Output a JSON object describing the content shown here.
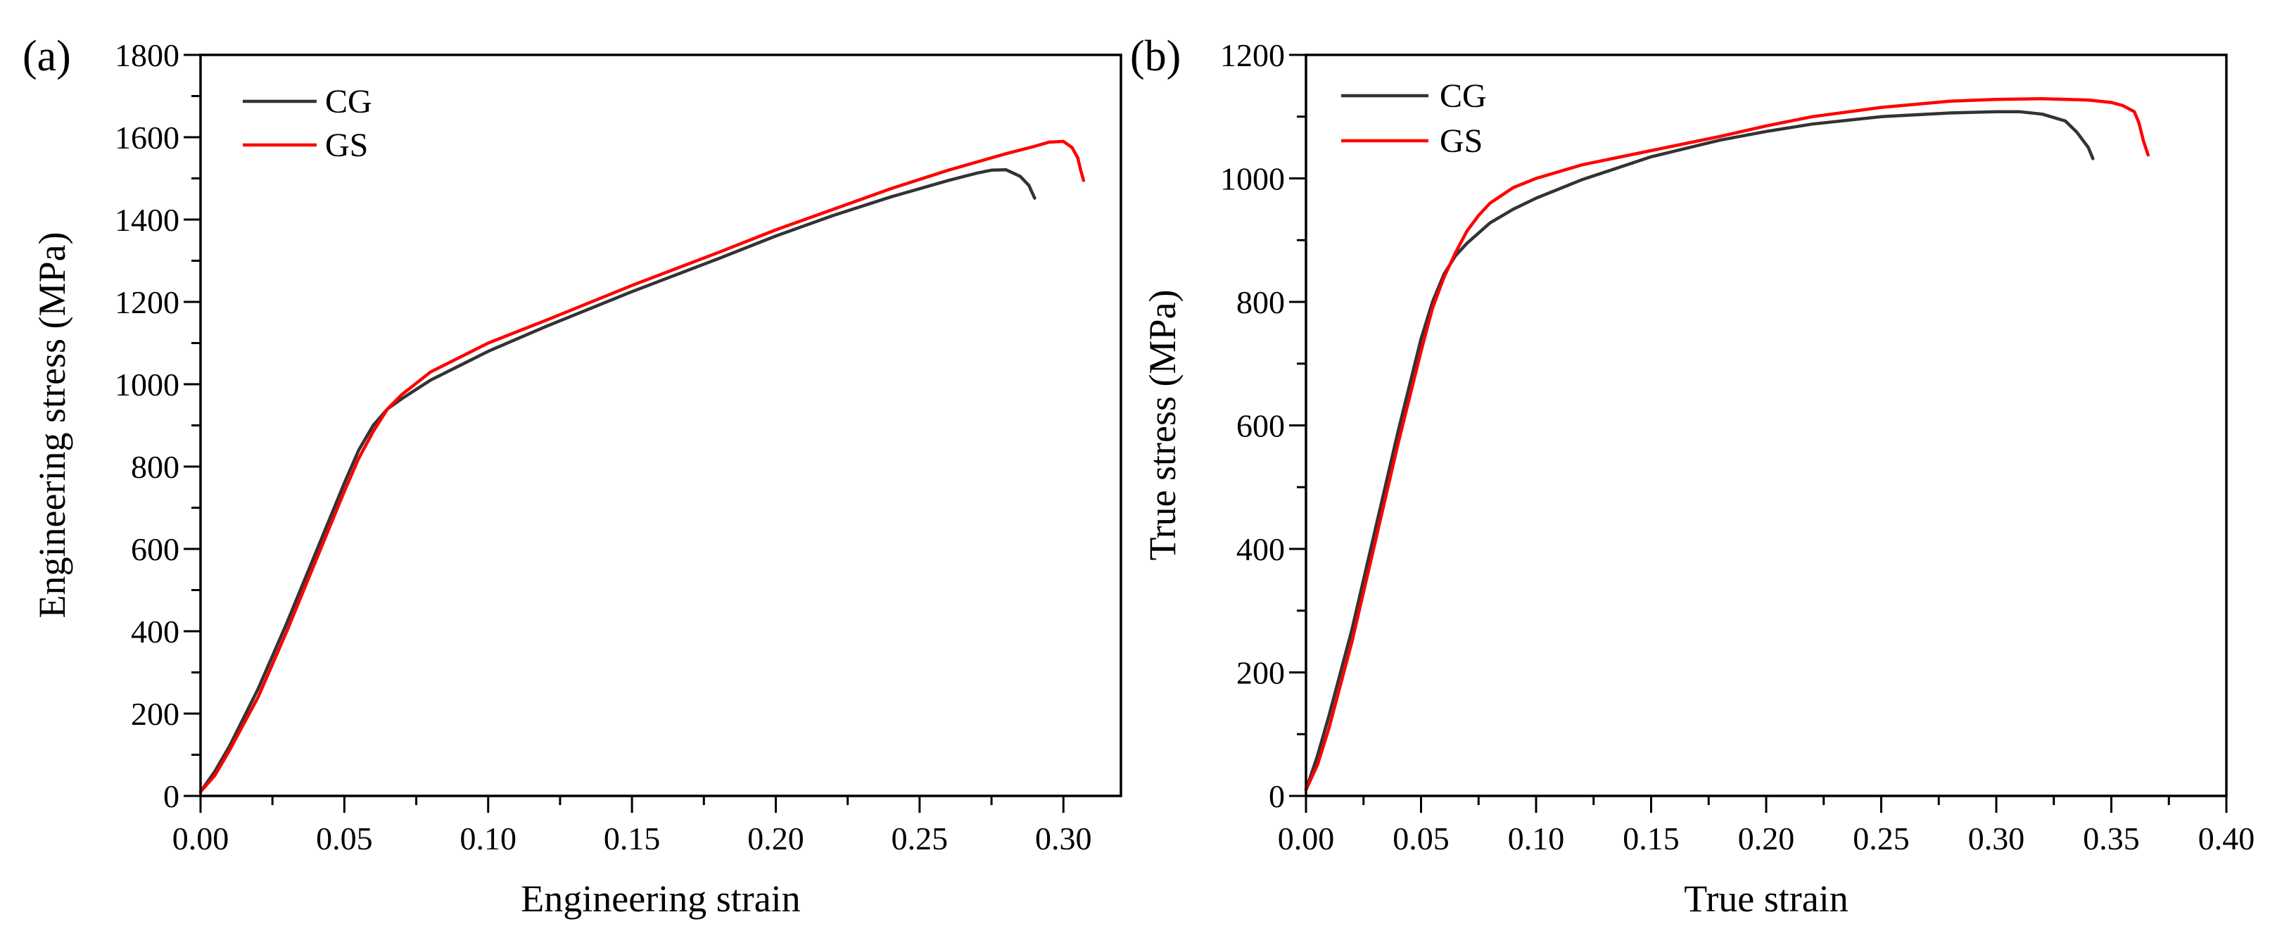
{
  "chart_data": [
    {
      "type": "line",
      "panel_label": "(a)",
      "title": "",
      "xlabel": "Engineering strain",
      "ylabel": "Engineering stress (MPa)",
      "xlim": [
        0,
        0.32
      ],
      "ylim": [
        0,
        1800
      ],
      "x_major_ticks": [
        0.0,
        0.05,
        0.1,
        0.15,
        0.2,
        0.25,
        0.3
      ],
      "x_tick_labels": [
        "0.00",
        "0.05",
        "0.10",
        "0.15",
        "0.20",
        "0.25",
        "0.30"
      ],
      "y_major_ticks": [
        0,
        200,
        400,
        600,
        800,
        1000,
        1200,
        1400,
        1600,
        1800
      ],
      "y_tick_labels": [
        "0",
        "200",
        "400",
        "600",
        "800",
        "1000",
        "1200",
        "1400",
        "1600",
        "1800"
      ],
      "legend_position": "top-left",
      "grid": false,
      "series": [
        {
          "name": "CG",
          "color": "#333333",
          "points": [
            [
              0.0,
              10
            ],
            [
              0.005,
              60
            ],
            [
              0.01,
              120
            ],
            [
              0.02,
              260
            ],
            [
              0.03,
              420
            ],
            [
              0.04,
              590
            ],
            [
              0.05,
              760
            ],
            [
              0.055,
              840
            ],
            [
              0.06,
              900
            ],
            [
              0.065,
              940
            ],
            [
              0.07,
              965
            ],
            [
              0.08,
              1010
            ],
            [
              0.09,
              1045
            ],
            [
              0.1,
              1080
            ],
            [
              0.12,
              1140
            ],
            [
              0.15,
              1225
            ],
            [
              0.18,
              1305
            ],
            [
              0.2,
              1360
            ],
            [
              0.22,
              1410
            ],
            [
              0.24,
              1455
            ],
            [
              0.26,
              1495
            ],
            [
              0.27,
              1513
            ],
            [
              0.275,
              1520
            ],
            [
              0.28,
              1521
            ],
            [
              0.285,
              1505
            ],
            [
              0.288,
              1483
            ],
            [
              0.29,
              1452
            ]
          ]
        },
        {
          "name": "GS",
          "color": "#ff0000",
          "points": [
            [
              0.0,
              10
            ],
            [
              0.005,
              50
            ],
            [
              0.01,
              110
            ],
            [
              0.02,
              240
            ],
            [
              0.03,
              400
            ],
            [
              0.04,
              570
            ],
            [
              0.05,
              740
            ],
            [
              0.055,
              820
            ],
            [
              0.06,
              885
            ],
            [
              0.065,
              940
            ],
            [
              0.07,
              975
            ],
            [
              0.08,
              1030
            ],
            [
              0.09,
              1065
            ],
            [
              0.1,
              1100
            ],
            [
              0.12,
              1155
            ],
            [
              0.15,
              1240
            ],
            [
              0.18,
              1320
            ],
            [
              0.2,
              1375
            ],
            [
              0.22,
              1425
            ],
            [
              0.24,
              1475
            ],
            [
              0.26,
              1520
            ],
            [
              0.28,
              1560
            ],
            [
              0.29,
              1578
            ],
            [
              0.295,
              1588
            ],
            [
              0.3,
              1590
            ],
            [
              0.303,
              1575
            ],
            [
              0.305,
              1550
            ],
            [
              0.306,
              1520
            ],
            [
              0.307,
              1495
            ]
          ]
        }
      ]
    },
    {
      "type": "line",
      "panel_label": "(b)",
      "title": "",
      "xlabel": "True strain",
      "ylabel": "True stress (MPa)",
      "xlim": [
        0,
        0.4
      ],
      "ylim": [
        0,
        1200
      ],
      "x_major_ticks": [
        0.0,
        0.05,
        0.1,
        0.15,
        0.2,
        0.25,
        0.3,
        0.35,
        0.4
      ],
      "x_tick_labels": [
        "0.00",
        "0.05",
        "0.10",
        "0.15",
        "0.20",
        "0.25",
        "0.30",
        "0.35",
        "0.40"
      ],
      "y_major_ticks": [
        0,
        200,
        400,
        600,
        800,
        1000,
        1200
      ],
      "y_tick_labels": [
        "0",
        "200",
        "400",
        "600",
        "800",
        "1000",
        "1200"
      ],
      "legend_position": "top-left",
      "grid": false,
      "series": [
        {
          "name": "CG",
          "color": "#333333",
          "points": [
            [
              0.0,
              10
            ],
            [
              0.005,
              65
            ],
            [
              0.01,
              130
            ],
            [
              0.02,
              270
            ],
            [
              0.03,
              430
            ],
            [
              0.04,
              590
            ],
            [
              0.05,
              740
            ],
            [
              0.055,
              800
            ],
            [
              0.06,
              845
            ],
            [
              0.065,
              875
            ],
            [
              0.07,
              895
            ],
            [
              0.08,
              928
            ],
            [
              0.09,
              950
            ],
            [
              0.1,
              968
            ],
            [
              0.12,
              998
            ],
            [
              0.15,
              1035
            ],
            [
              0.18,
              1062
            ],
            [
              0.2,
              1076
            ],
            [
              0.22,
              1088
            ],
            [
              0.25,
              1100
            ],
            [
              0.28,
              1106
            ],
            [
              0.3,
              1108
            ],
            [
              0.31,
              1108
            ],
            [
              0.32,
              1104
            ],
            [
              0.33,
              1093
            ],
            [
              0.335,
              1075
            ],
            [
              0.34,
              1050
            ],
            [
              0.342,
              1032
            ]
          ]
        },
        {
          "name": "GS",
          "color": "#ff0000",
          "points": [
            [
              0.0,
              10
            ],
            [
              0.005,
              50
            ],
            [
              0.01,
              110
            ],
            [
              0.02,
              250
            ],
            [
              0.03,
              410
            ],
            [
              0.04,
              570
            ],
            [
              0.05,
              720
            ],
            [
              0.055,
              790
            ],
            [
              0.06,
              840
            ],
            [
              0.065,
              880
            ],
            [
              0.07,
              915
            ],
            [
              0.075,
              940
            ],
            [
              0.08,
              960
            ],
            [
              0.09,
              985
            ],
            [
              0.1,
              1000
            ],
            [
              0.12,
              1022
            ],
            [
              0.15,
              1045
            ],
            [
              0.18,
              1068
            ],
            [
              0.2,
              1085
            ],
            [
              0.22,
              1100
            ],
            [
              0.25,
              1115
            ],
            [
              0.28,
              1125
            ],
            [
              0.3,
              1128
            ],
            [
              0.32,
              1129
            ],
            [
              0.34,
              1127
            ],
            [
              0.35,
              1123
            ],
            [
              0.355,
              1118
            ],
            [
              0.36,
              1108
            ],
            [
              0.362,
              1090
            ],
            [
              0.364,
              1060
            ],
            [
              0.366,
              1038
            ]
          ]
        }
      ]
    }
  ]
}
